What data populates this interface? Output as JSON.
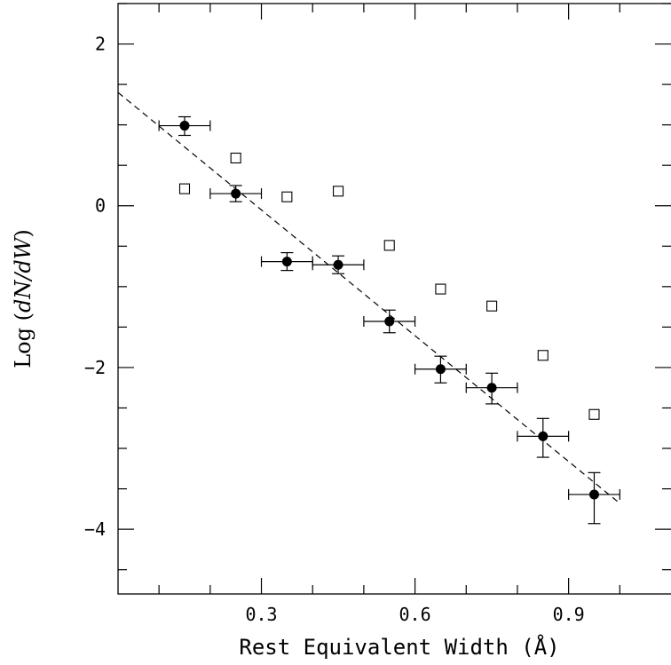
{
  "chart_data": {
    "type": "scatter",
    "title": "",
    "xlabel": "Rest Equivalent Width (Å)",
    "ylabel": "Log (dN/dW)",
    "xlim": [
      0.02,
      1.1
    ],
    "ylim": [
      -4.8,
      2.5
    ],
    "x_ticks": [
      0.3,
      0.6,
      0.9
    ],
    "x_tick_labels": [
      "0.3",
      "0.6",
      "0.9"
    ],
    "y_ticks": [
      2,
      0,
      -2,
      -4
    ],
    "y_tick_labels": [
      "2",
      "0",
      "−2",
      "−4"
    ],
    "grid": false,
    "legend": "none",
    "series": [
      {
        "marker": "filled-circle",
        "points": [
          {
            "x": 0.15,
            "y": 0.99,
            "xerr": 0.05,
            "yerr_hi": 0.11,
            "yerr_lo": 0.12
          },
          {
            "x": 0.25,
            "y": 0.15,
            "xerr": 0.05,
            "yerr_hi": 0.1,
            "yerr_lo": 0.1
          },
          {
            "x": 0.35,
            "y": -0.69,
            "xerr": 0.05,
            "yerr_hi": 0.11,
            "yerr_lo": 0.11
          },
          {
            "x": 0.45,
            "y": -0.73,
            "xerr": 0.05,
            "yerr_hi": 0.11,
            "yerr_lo": 0.11
          },
          {
            "x": 0.55,
            "y": -1.43,
            "xerr": 0.05,
            "yerr_hi": 0.14,
            "yerr_lo": 0.14
          },
          {
            "x": 0.65,
            "y": -2.02,
            "xerr": 0.05,
            "yerr_hi": 0.16,
            "yerr_lo": 0.17
          },
          {
            "x": 0.75,
            "y": -2.25,
            "xerr": 0.05,
            "yerr_hi": 0.18,
            "yerr_lo": 0.2
          },
          {
            "x": 0.85,
            "y": -2.85,
            "xerr": 0.05,
            "yerr_hi": 0.22,
            "yerr_lo": 0.26
          },
          {
            "x": 0.95,
            "y": -3.57,
            "xerr": 0.05,
            "yerr_hi": 0.27,
            "yerr_lo": 0.36
          }
        ]
      },
      {
        "marker": "open-square",
        "points": [
          {
            "x": 0.15,
            "y": 0.21
          },
          {
            "x": 0.25,
            "y": 0.59
          },
          {
            "x": 0.35,
            "y": 0.11
          },
          {
            "x": 0.45,
            "y": 0.18
          },
          {
            "x": 0.55,
            "y": -0.49
          },
          {
            "x": 0.65,
            "y": -1.03
          },
          {
            "x": 0.75,
            "y": -1.24
          },
          {
            "x": 0.85,
            "y": -1.85
          },
          {
            "x": 0.95,
            "y": -2.58
          }
        ]
      }
    ],
    "fit_line": {
      "style": "dashed",
      "x": [
        0.02,
        1.0
      ],
      "y": [
        1.4,
        -3.68
      ]
    }
  }
}
